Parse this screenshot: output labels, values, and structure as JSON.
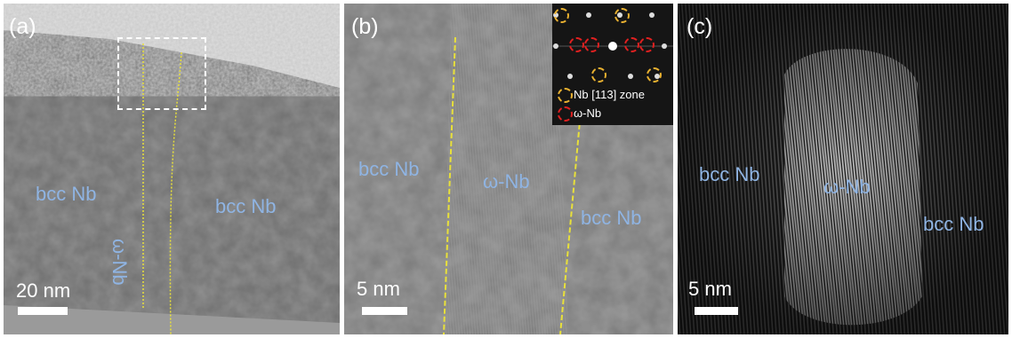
{
  "panels": [
    {
      "label": "(a)",
      "phases": [
        "bcc Nb",
        "bcc Nb",
        "ω-Nb"
      ],
      "scale_bar": "20 nm"
    },
    {
      "label": "(b)",
      "phases": [
        "bcc Nb",
        "ω-Nb",
        "bcc Nb"
      ],
      "scale_bar": "5 nm",
      "inset_legend": [
        "Nb [113] zone",
        "ω-Nb"
      ]
    },
    {
      "label": "(c)",
      "phases": [
        "bcc Nb",
        "ω-Nb",
        "bcc Nb"
      ],
      "scale_bar": "5 nm"
    }
  ],
  "colors": {
    "phase_label": "#8fb4e3",
    "boundary_line": "#e8e03a",
    "nb_ring": "#e8b030",
    "omega_ring": "#e02020",
    "annotation": "#ffffff"
  }
}
